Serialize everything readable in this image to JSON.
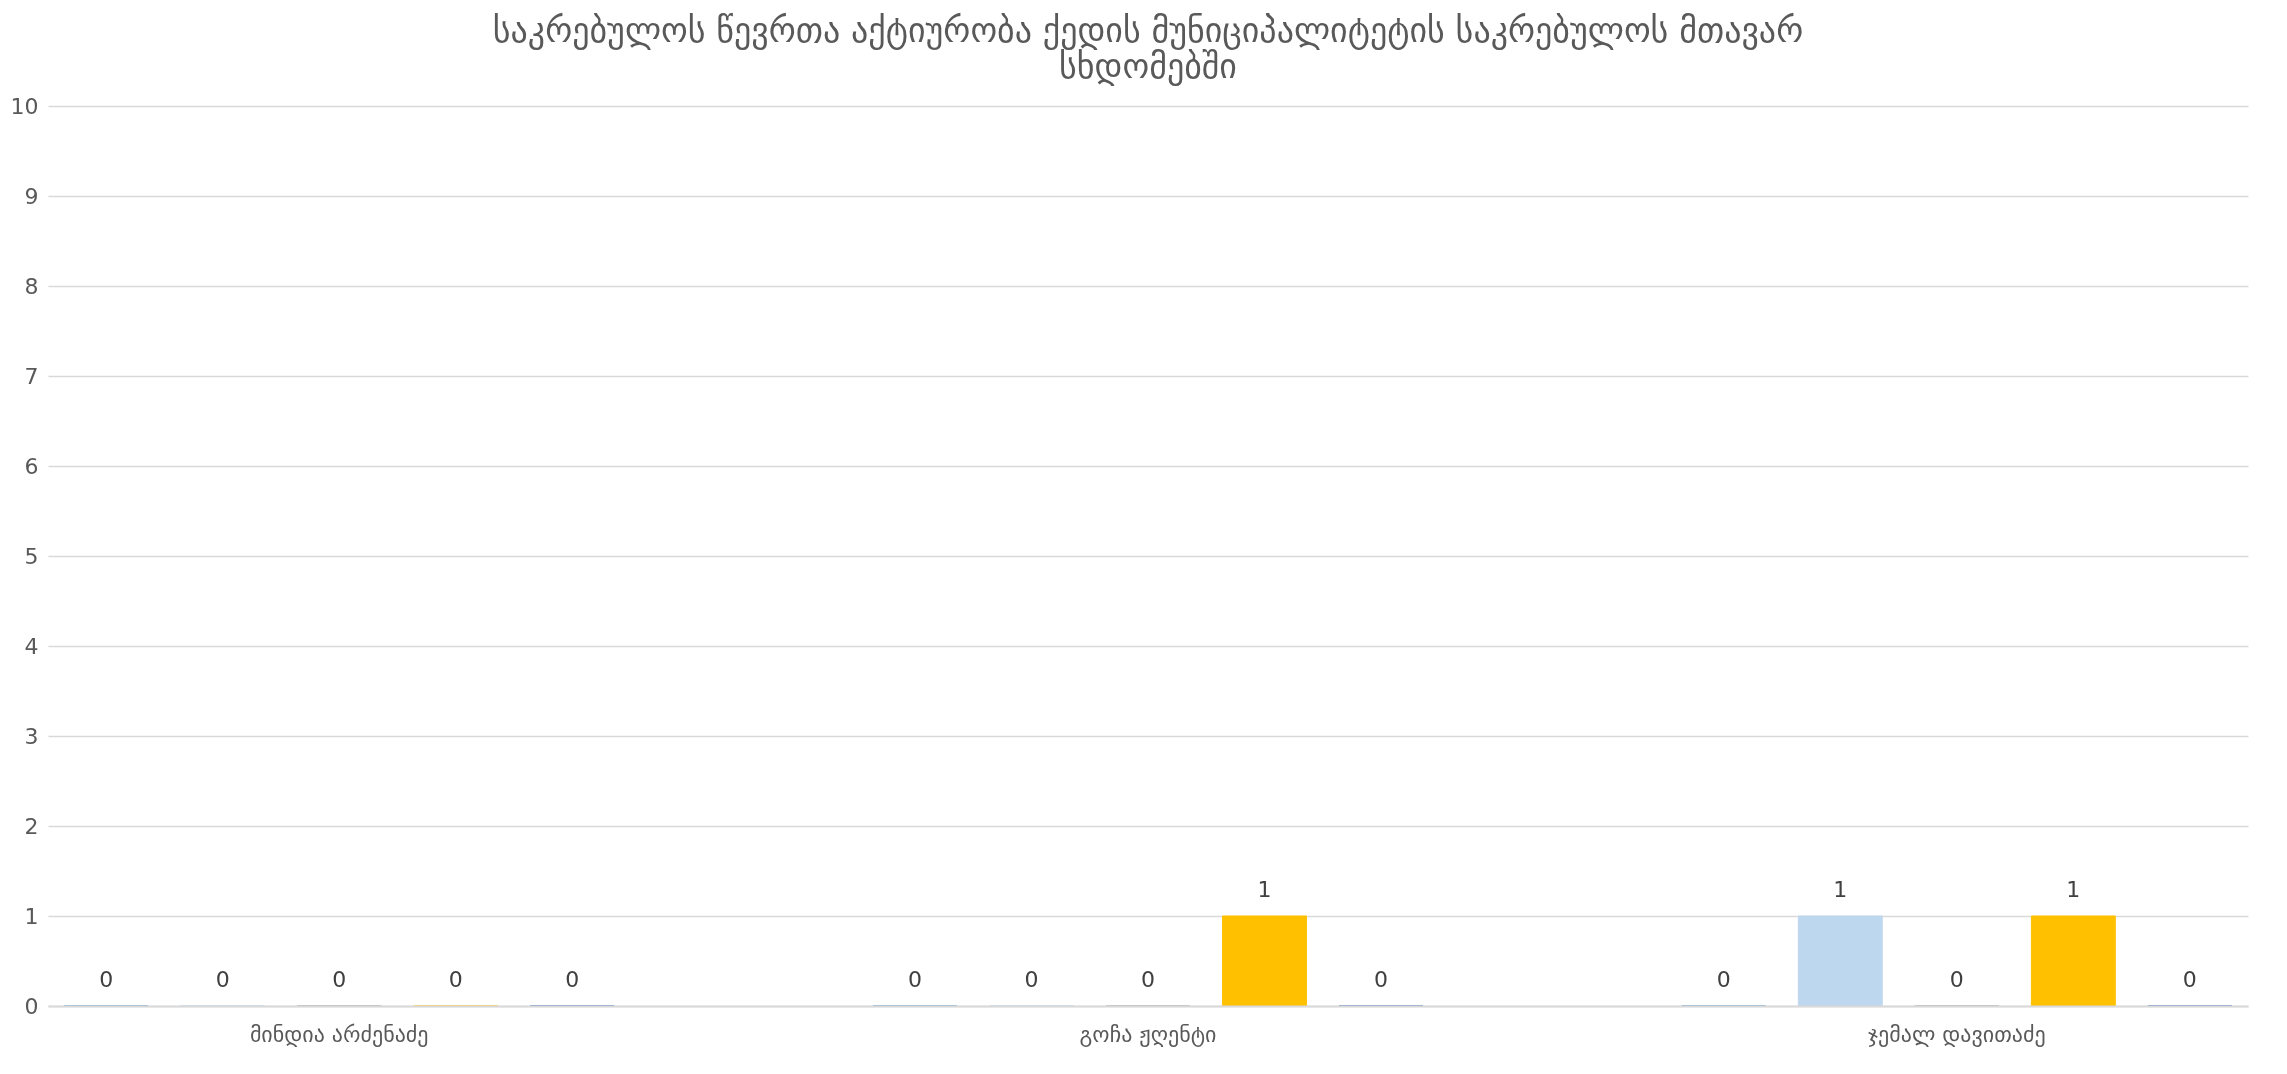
{
  "chart_data": {
    "type": "bar",
    "title": "საკრებულოს წევრთა აქტიურობა ქედის მუნიციპალიტეტის საკრებულოს მთავარ სხდომებში",
    "categories": [
      "მინდია არძენაძე",
      "გოჩა ჟღენტი",
      "ჯემალ დავითაძე"
    ],
    "series": [
      {
        "color": "#5b9bd5",
        "values": [
          0,
          0,
          0
        ]
      },
      {
        "color": "#bdd7ee",
        "values": [
          0,
          0,
          1
        ]
      },
      {
        "color": "#a5a5a5",
        "values": [
          0,
          0,
          0
        ]
      },
      {
        "color": "#ffc000",
        "values": [
          0,
          1,
          1
        ]
      },
      {
        "color": "#4472c4",
        "values": [
          0,
          0,
          0
        ]
      }
    ],
    "ylim": [
      0,
      10
    ],
    "yticks": [
      0,
      1,
      2,
      3,
      4,
      5,
      6,
      7,
      8,
      9,
      10
    ],
    "grid": "y",
    "data_labels": true,
    "legend": false
  }
}
